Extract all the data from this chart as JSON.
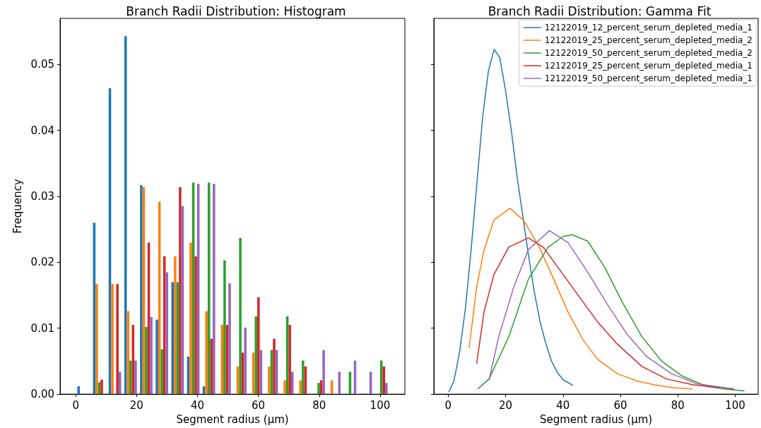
{
  "chart_data": [
    {
      "type": "histogram",
      "title": "Branch Radii Distribution: Histogram",
      "xlabel": "Segment radius (μm)",
      "ylabel": "Frequency",
      "bins": [
        0,
        5.15,
        10.3,
        15.45,
        20.6,
        25.75,
        30.9,
        36.05,
        41.2,
        46.35,
        51.5,
        56.65,
        61.8,
        66.95,
        72.1,
        77.25,
        82.4,
        87.55,
        92.7,
        97.85,
        103
      ],
      "series": [
        {
          "color": "#1f77b4",
          "values": [
            0.0012,
            0.026,
            0.0464,
            0.0543,
            0.0317,
            0.0113,
            0.017,
            0.0057,
            0.0012,
            0,
            0,
            0,
            0,
            0,
            0,
            0,
            0,
            0,
            0,
            0
          ]
        },
        {
          "color": "#ff7f0e",
          "values": [
            0,
            0.0167,
            0.0167,
            0.0126,
            0.0314,
            0.0292,
            0.0209,
            0.023,
            0.0126,
            0.0105,
            0.0042,
            0.0063,
            0.0042,
            0.0021,
            0.0021,
            0,
            0.0021,
            0,
            0,
            0
          ]
        },
        {
          "color": "#2ca02c",
          "values": [
            0,
            0.0018,
            0,
            0.0051,
            0.0102,
            0.0068,
            0.017,
            0.0321,
            0.0321,
            0.0203,
            0.0237,
            0.0118,
            0.0067,
            0.0118,
            0.0051,
            0.0017,
            0,
            0.0034,
            0,
            0.0051
          ]
        },
        {
          "color": "#d62728",
          "values": [
            0,
            0.0022,
            0.0167,
            0.0105,
            0.023,
            0.0209,
            0.0314,
            0.0209,
            0.0084,
            0.0105,
            0.0063,
            0.0147,
            0.0084,
            0.0105,
            0.0042,
            0.0021,
            0,
            0,
            0,
            0.0042
          ]
        },
        {
          "color": "#9467bd",
          "values": [
            0,
            0,
            0.0034,
            0.0051,
            0.0117,
            0.0185,
            0.0285,
            0.0319,
            0.0319,
            0.0168,
            0.0101,
            0.0067,
            0.0067,
            0.0034,
            0,
            0.0067,
            0.0034,
            0.0051,
            0.0034,
            0.0017
          ]
        }
      ],
      "xlim": [
        -5.15,
        108.15
      ],
      "xticks": [
        0,
        20,
        40,
        60,
        80,
        100
      ],
      "ylim": [
        0,
        0.057
      ],
      "yticks": [
        {
          "value": 0,
          "label": "0.00"
        },
        {
          "value": 0.01,
          "label": "0.01"
        },
        {
          "value": 0.02,
          "label": "0.02"
        },
        {
          "value": 0.03,
          "label": "0.03"
        },
        {
          "value": 0.04,
          "label": "0.04"
        },
        {
          "value": 0.05,
          "label": "0.05"
        }
      ]
    },
    {
      "type": "line",
      "title": "Branch Radii Distribution: Gamma Fit",
      "xlabel": "Segment radius (μm)",
      "legend": "top right",
      "marker": "none",
      "tick_labels": "x",
      "series": [
        {
          "name": "12122019_12_percent_serum_depleted_media_1",
          "color": "#1f77b4",
          "x": [
            0.2,
            2,
            4,
            6,
            8,
            10,
            12,
            14,
            16,
            18,
            20,
            22,
            24,
            26,
            28,
            30,
            32,
            34,
            36,
            38,
            40,
            42,
            43.5
          ],
          "values": [
            0.0003,
            0.002,
            0.0065,
            0.013,
            0.022,
            0.032,
            0.042,
            0.049,
            0.0523,
            0.051,
            0.046,
            0.04,
            0.033,
            0.027,
            0.021,
            0.0155,
            0.011,
            0.0077,
            0.005,
            0.0033,
            0.0022,
            0.0017,
            0.0013
          ]
        },
        {
          "name": "12122019_25_percent_serum_depleted_media_2",
          "color": "#ff7f0e",
          "x": [
            7.3,
            9.9,
            12.5,
            15.9,
            21.5,
            26.2,
            31.4,
            36.5,
            41.7,
            46.9,
            52,
            58.9,
            65.8,
            72,
            78,
            85.1
          ],
          "values": [
            0.007,
            0.0162,
            0.0219,
            0.0264,
            0.0282,
            0.0264,
            0.0226,
            0.0177,
            0.0125,
            0.0083,
            0.0053,
            0.0031,
            0.002,
            0.0014,
            0.001,
            0.0008
          ]
        },
        {
          "name": "12122019_50_percent_serum_depleted_media_2",
          "color": "#2ca02c",
          "x": [
            10.3,
            14.2,
            21.1,
            27.9,
            34.8,
            40,
            43.2,
            48.6,
            54.6,
            60.6,
            67.5,
            74.4,
            81.3,
            89.9,
            96,
            103.2
          ],
          "values": [
            0.0008,
            0.0023,
            0.0087,
            0.0174,
            0.0223,
            0.0239,
            0.0242,
            0.0232,
            0.0192,
            0.014,
            0.0087,
            0.005,
            0.0028,
            0.0012,
            0.0008,
            0.0005
          ]
        },
        {
          "name": "12122019_25_percent_serum_depleted_media_1",
          "color": "#d62728",
          "x": [
            9.9,
            12.5,
            15.9,
            21.1,
            27.9,
            33.1,
            38.3,
            45.1,
            52,
            58.9,
            67.5,
            76.1,
            85.6,
            99.7
          ],
          "values": [
            0.0046,
            0.0125,
            0.0181,
            0.0223,
            0.0237,
            0.0223,
            0.0192,
            0.0151,
            0.011,
            0.0076,
            0.0042,
            0.0023,
            0.0014,
            0.0008
          ]
        },
        {
          "name": "12122019_50_percent_serum_depleted_media_1",
          "color": "#9467bd",
          "x": [
            14.2,
            17.6,
            22.8,
            27.9,
            35.3,
            41.7,
            48.6,
            55.5,
            62.3,
            69.2,
            77.8,
            86.4,
            99.7
          ],
          "values": [
            0.0021,
            0.0087,
            0.0162,
            0.0219,
            0.0248,
            0.023,
            0.0185,
            0.0136,
            0.0091,
            0.0057,
            0.0031,
            0.0016,
            0.0008
          ]
        }
      ],
      "xlim": [
        -5,
        108
      ],
      "xticks": [
        0,
        20,
        40,
        60,
        80,
        100
      ],
      "ylim": [
        0,
        0.057
      ],
      "yticks": [
        {
          "value": 0,
          "label": null
        },
        {
          "value": 0.01,
          "label": null
        },
        {
          "value": 0.02,
          "label": null
        },
        {
          "value": 0.03,
          "label": null
        },
        {
          "value": 0.04,
          "label": null
        },
        {
          "value": 0.05,
          "label": null
        }
      ]
    }
  ]
}
